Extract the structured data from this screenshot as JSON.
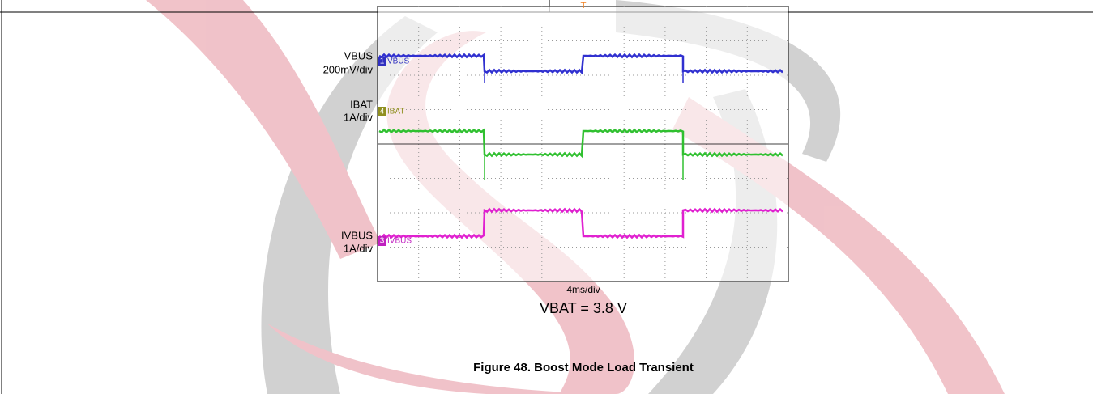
{
  "scope": {
    "channels": [
      {
        "number": "1",
        "name": "VBUS",
        "scale": "200mV/div"
      },
      {
        "number": "4",
        "name": "IBAT",
        "scale": "1A/div"
      },
      {
        "number": "3",
        "name": "IVBUS",
        "scale": "1A/div"
      }
    ],
    "trigger": "T",
    "timebase": "4ms/div"
  },
  "condition": "VBAT = 3.8 V",
  "caption": "Figure 48. Boost Mode Load Transient"
}
